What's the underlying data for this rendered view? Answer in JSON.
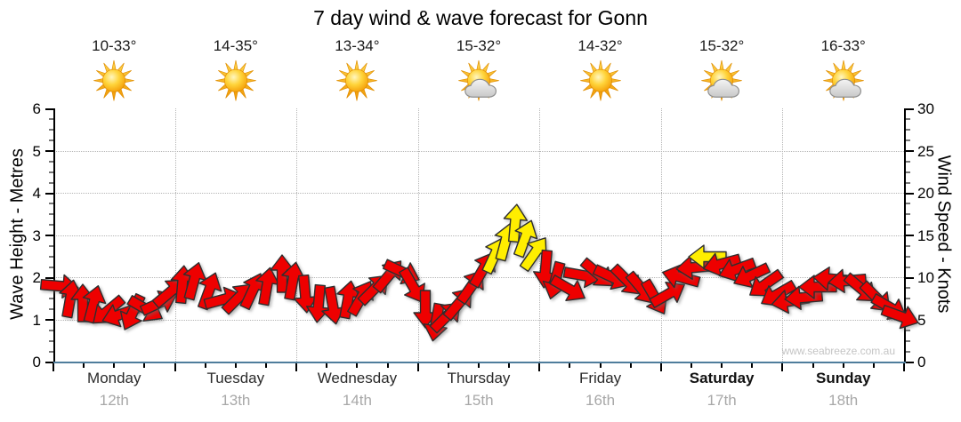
{
  "title": "7 day wind & wave forecast for Gonn",
  "watermark": "www.seabreeze.com.au",
  "days": [
    {
      "name": "Monday",
      "date": "12th",
      "temp": "10-33°",
      "icon": "sunny",
      "weekend": false
    },
    {
      "name": "Tuesday",
      "date": "13th",
      "temp": "14-35°",
      "icon": "sunny",
      "weekend": false
    },
    {
      "name": "Wednesday",
      "date": "14th",
      "temp": "13-34°",
      "icon": "sunny",
      "weekend": false
    },
    {
      "name": "Thursday",
      "date": "15th",
      "temp": "15-32°",
      "icon": "partly-cloudy",
      "weekend": false
    },
    {
      "name": "Friday",
      "date": "16th",
      "temp": "14-32°",
      "icon": "sunny",
      "weekend": false
    },
    {
      "name": "Saturday",
      "date": "17th",
      "temp": "15-32°",
      "icon": "partly-cloudy",
      "weekend": true
    },
    {
      "name": "Sunday",
      "date": "18th",
      "temp": "16-33°",
      "icon": "partly-cloudy",
      "weekend": true
    }
  ],
  "chart_data": {
    "type": "wind-arrow-timeseries",
    "title": "7 day wind & wave forecast for Gonn",
    "x_unit": "days",
    "x_range": [
      0,
      7
    ],
    "grid": true,
    "left_axis": {
      "label": "Wave Height - Metres",
      "range": [
        0,
        6
      ],
      "ticks": [
        0,
        1,
        2,
        3,
        4,
        5,
        6
      ]
    },
    "right_axis": {
      "label": "Wind Speed - Knots",
      "range": [
        0,
        30
      ],
      "ticks": [
        0,
        5,
        10,
        15,
        20,
        25,
        30
      ]
    },
    "arrow_colors": {
      "strong_knots": 12,
      "normal": "#ee0000",
      "strong": "#ffee00"
    },
    "wind_arrows": [
      {
        "day": 0.05,
        "knots": 9.0,
        "dir_deg": 95
      },
      {
        "day": 0.14,
        "knots": 7.5,
        "dir_deg": 10
      },
      {
        "day": 0.24,
        "knots": 7.0,
        "dir_deg": 0
      },
      {
        "day": 0.33,
        "knots": 6.8,
        "dir_deg": 15
      },
      {
        "day": 0.45,
        "knots": 6.0,
        "dir_deg": 230
      },
      {
        "day": 0.55,
        "knots": 5.6,
        "dir_deg": 250
      },
      {
        "day": 0.65,
        "knots": 5.8,
        "dir_deg": 205
      },
      {
        "day": 0.76,
        "knots": 6.2,
        "dir_deg": 120
      },
      {
        "day": 0.87,
        "knots": 7.0,
        "dir_deg": 65
      },
      {
        "day": 0.96,
        "knots": 8.2,
        "dir_deg": 50
      },
      {
        "day": 1.06,
        "knots": 9.2,
        "dir_deg": 5
      },
      {
        "day": 1.16,
        "knots": 9.6,
        "dir_deg": 15
      },
      {
        "day": 1.28,
        "knots": 8.4,
        "dir_deg": 20
      },
      {
        "day": 1.4,
        "knots": 7.4,
        "dir_deg": 75
      },
      {
        "day": 1.52,
        "knots": 7.6,
        "dir_deg": 45
      },
      {
        "day": 1.64,
        "knots": 8.4,
        "dir_deg": 25
      },
      {
        "day": 1.76,
        "knots": 9.0,
        "dir_deg": 10
      },
      {
        "day": 1.88,
        "knots": 10.4,
        "dir_deg": 0
      },
      {
        "day": 1.97,
        "knots": 9.6,
        "dir_deg": 10
      },
      {
        "day": 2.07,
        "knots": 8.0,
        "dir_deg": 175
      },
      {
        "day": 2.18,
        "knots": 6.8,
        "dir_deg": 185
      },
      {
        "day": 2.3,
        "knots": 6.6,
        "dir_deg": 170
      },
      {
        "day": 2.42,
        "knots": 7.4,
        "dir_deg": 10
      },
      {
        "day": 2.53,
        "knots": 7.6,
        "dir_deg": 30
      },
      {
        "day": 2.64,
        "knots": 8.6,
        "dir_deg": 45
      },
      {
        "day": 2.76,
        "knots": 10.2,
        "dir_deg": 40
      },
      {
        "day": 2.87,
        "knots": 10.6,
        "dir_deg": 115
      },
      {
        "day": 2.96,
        "knots": 9.0,
        "dir_deg": 150
      },
      {
        "day": 3.06,
        "knots": 6.2,
        "dir_deg": 180
      },
      {
        "day": 3.15,
        "knots": 4.6,
        "dir_deg": 190
      },
      {
        "day": 3.24,
        "knots": 5.4,
        "dir_deg": 45
      },
      {
        "day": 3.34,
        "knots": 7.0,
        "dir_deg": 40
      },
      {
        "day": 3.44,
        "knots": 9.0,
        "dir_deg": 35
      },
      {
        "day": 3.54,
        "knots": 11.0,
        "dir_deg": 30
      },
      {
        "day": 3.63,
        "knots": 12.6,
        "dir_deg": 25
      },
      {
        "day": 3.72,
        "knots": 14.2,
        "dir_deg": 15
      },
      {
        "day": 3.8,
        "knots": 16.4,
        "dir_deg": 5
      },
      {
        "day": 3.88,
        "knots": 14.6,
        "dir_deg": 20
      },
      {
        "day": 3.96,
        "knots": 12.8,
        "dir_deg": 35
      },
      {
        "day": 4.05,
        "knots": 11.0,
        "dir_deg": 185
      },
      {
        "day": 4.13,
        "knots": 9.6,
        "dir_deg": 195
      },
      {
        "day": 4.24,
        "knots": 8.6,
        "dir_deg": 120
      },
      {
        "day": 4.36,
        "knots": 10.2,
        "dir_deg": 100
      },
      {
        "day": 4.48,
        "knots": 10.4,
        "dir_deg": 130
      },
      {
        "day": 4.6,
        "knots": 10.0,
        "dir_deg": 115
      },
      {
        "day": 4.72,
        "knots": 9.6,
        "dir_deg": 135
      },
      {
        "day": 4.84,
        "knots": 8.6,
        "dir_deg": 140
      },
      {
        "day": 4.95,
        "knots": 7.6,
        "dir_deg": 150
      },
      {
        "day": 5.06,
        "knots": 8.0,
        "dir_deg": 60
      },
      {
        "day": 5.16,
        "knots": 10.0,
        "dir_deg": 285
      },
      {
        "day": 5.28,
        "knots": 11.2,
        "dir_deg": 265
      },
      {
        "day": 5.38,
        "knots": 12.4,
        "dir_deg": 270
      },
      {
        "day": 5.5,
        "knots": 11.6,
        "dir_deg": 255
      },
      {
        "day": 5.62,
        "knots": 11.0,
        "dir_deg": 250
      },
      {
        "day": 5.74,
        "knots": 10.2,
        "dir_deg": 245
      },
      {
        "day": 5.86,
        "knots": 9.2,
        "dir_deg": 235
      },
      {
        "day": 5.96,
        "knots": 8.0,
        "dir_deg": 240
      },
      {
        "day": 6.06,
        "knots": 7.2,
        "dir_deg": 260
      },
      {
        "day": 6.17,
        "knots": 7.6,
        "dir_deg": 265
      },
      {
        "day": 6.29,
        "knots": 8.8,
        "dir_deg": 270
      },
      {
        "day": 6.41,
        "knots": 9.8,
        "dir_deg": 275
      },
      {
        "day": 6.53,
        "knots": 9.6,
        "dir_deg": 265
      },
      {
        "day": 6.65,
        "knots": 8.6,
        "dir_deg": 130
      },
      {
        "day": 6.77,
        "knots": 7.6,
        "dir_deg": 135
      },
      {
        "day": 6.88,
        "knots": 6.4,
        "dir_deg": 120
      },
      {
        "day": 6.97,
        "knots": 5.4,
        "dir_deg": 110
      }
    ]
  }
}
